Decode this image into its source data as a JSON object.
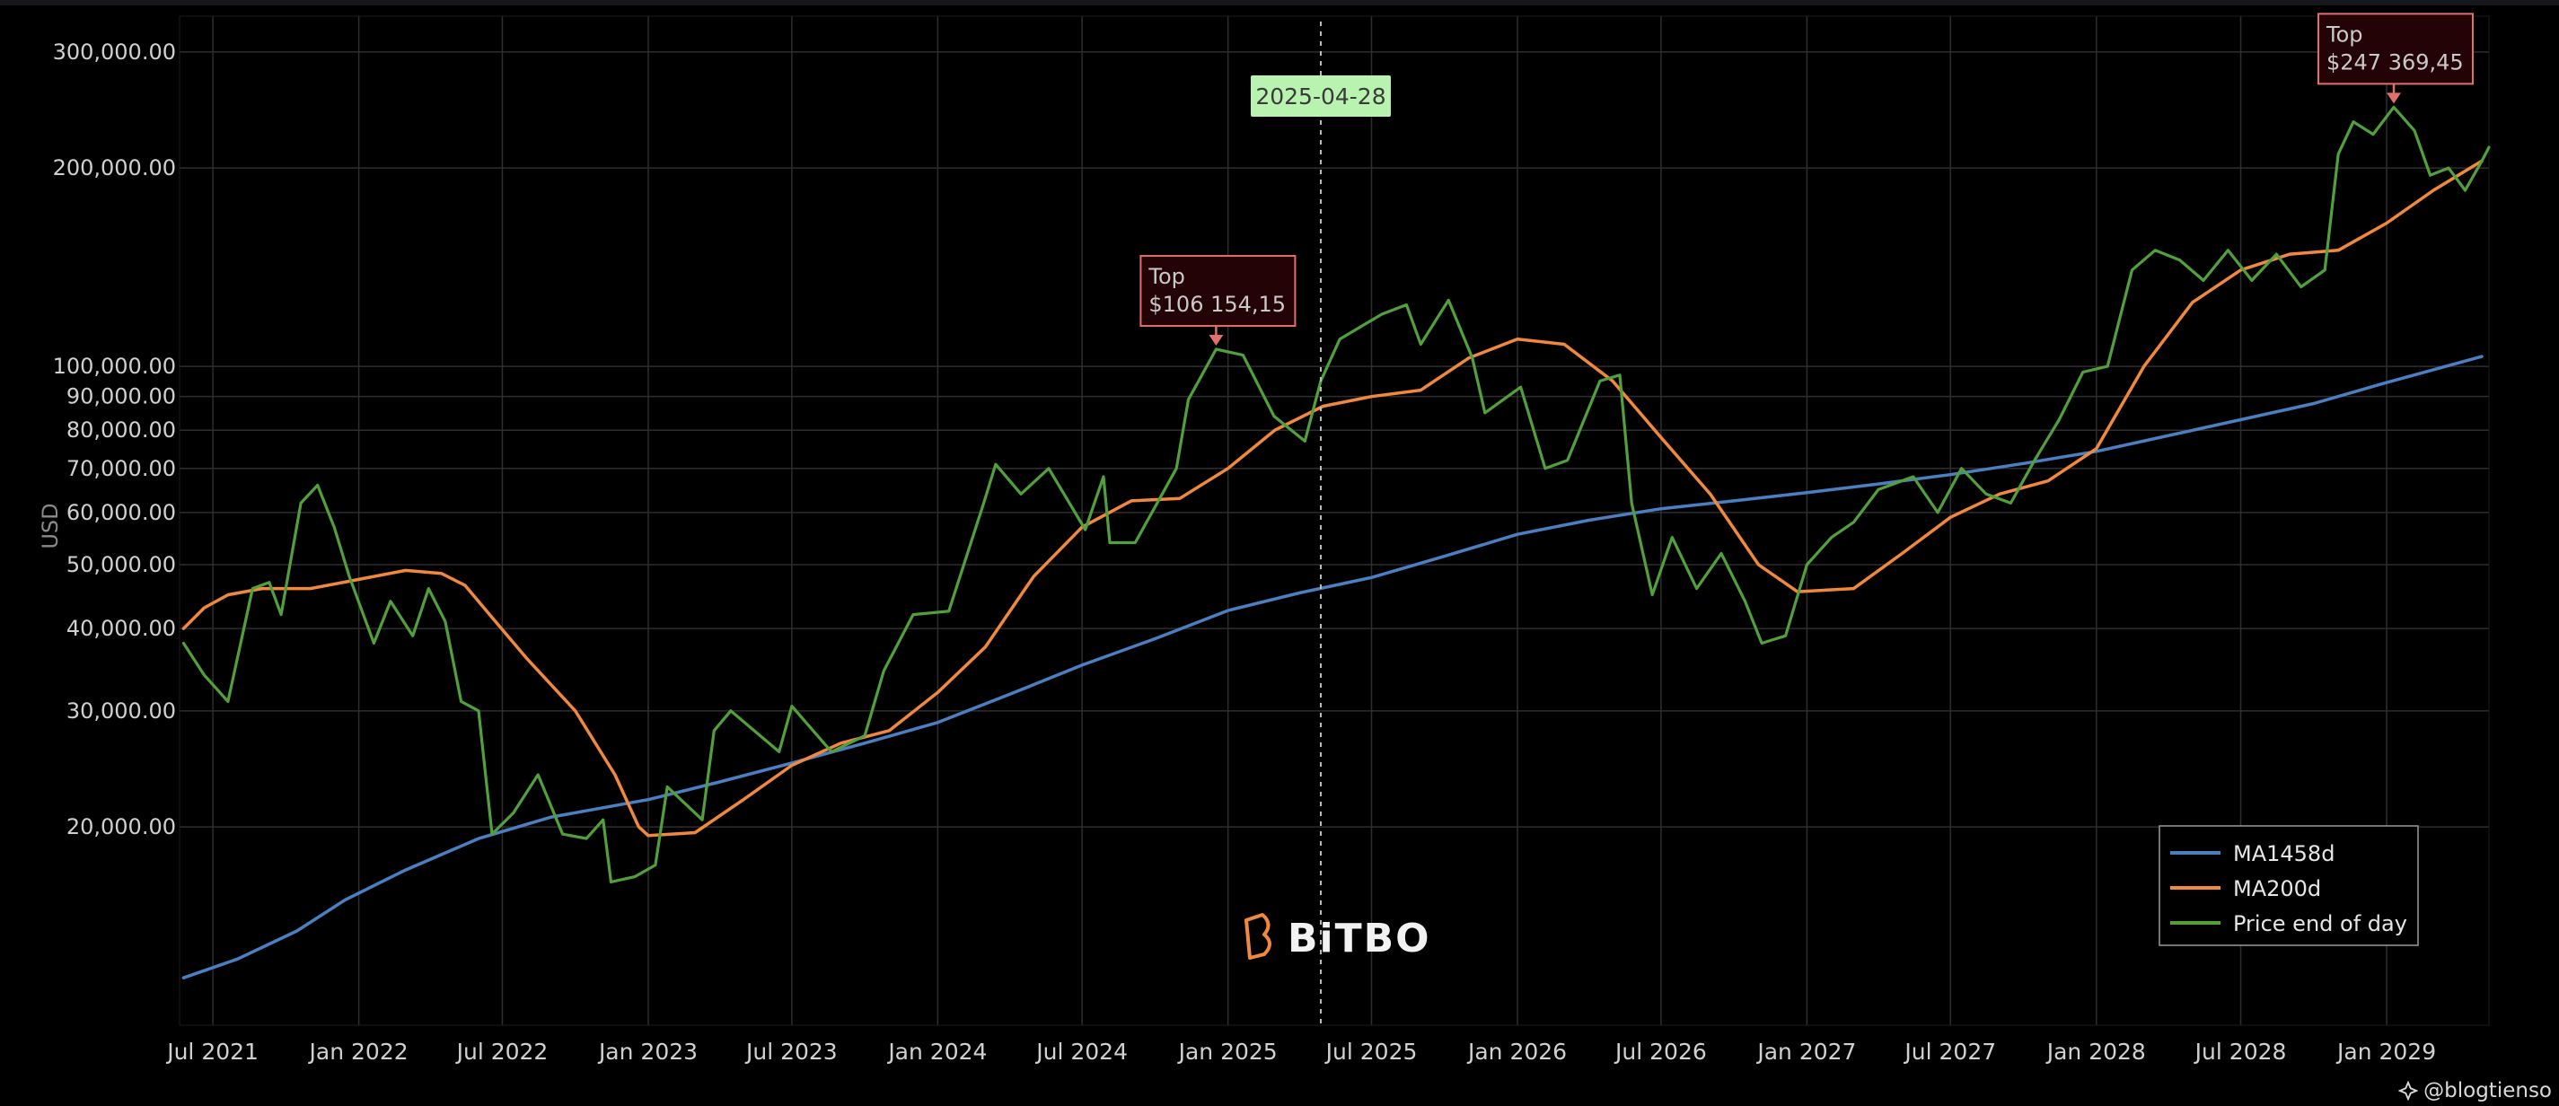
{
  "chart_data": {
    "type": "line",
    "title": "",
    "xlabel": "",
    "ylabel": "USD",
    "y_scale": "log",
    "ylim": [
      10000,
      340000
    ],
    "xlim": [
      "2021-05-20",
      "2029-05-10"
    ],
    "grid": true,
    "legend_position": "bottom-right",
    "y_ticks": [
      300000,
      200000,
      100000,
      90000,
      80000,
      70000,
      60000,
      50000,
      40000,
      30000,
      20000
    ],
    "y_tick_labels": [
      "300,000.00",
      "200,000.00",
      "100,000.00",
      "90,000.00",
      "80,000.00",
      "70,000.00",
      "60,000.00",
      "50,000.00",
      "40,000.00",
      "30,000.00",
      "20,000.00"
    ],
    "x_ticks": [
      "2021-07-01",
      "2022-01-01",
      "2022-07-01",
      "2023-01-01",
      "2023-07-01",
      "2024-01-01",
      "2024-07-01",
      "2025-01-01",
      "2025-07-01",
      "2026-01-01",
      "2026-07-01",
      "2027-01-01",
      "2027-07-01",
      "2028-01-01",
      "2028-07-01",
      "2029-01-01"
    ],
    "x_tick_labels": [
      "Jul 2021",
      "Jan 2022",
      "Jul 2022",
      "Jan 2023",
      "Jul 2023",
      "Jan 2024",
      "Jul 2024",
      "Jan 2025",
      "Jul 2025",
      "Jan 2026",
      "Jul 2026",
      "Jan 2027",
      "Jul 2027",
      "Jan 2028",
      "Jul 2028",
      "Jan 2029"
    ],
    "series": [
      {
        "name": "MA1458d",
        "color": "#4a7fc1",
        "points": [
          [
            "2021-05-25",
            11800
          ],
          [
            "2021-08-01",
            12600
          ],
          [
            "2021-10-15",
            13900
          ],
          [
            "2021-12-15",
            15500
          ],
          [
            "2022-03-01",
            17200
          ],
          [
            "2022-06-01",
            19200
          ],
          [
            "2022-09-01",
            20700
          ],
          [
            "2023-01-01",
            22000
          ],
          [
            "2023-04-01",
            23400
          ],
          [
            "2023-07-01",
            25000
          ],
          [
            "2023-10-01",
            26800
          ],
          [
            "2024-01-01",
            28800
          ],
          [
            "2024-04-01",
            31800
          ],
          [
            "2024-07-01",
            35200
          ],
          [
            "2024-10-01",
            38600
          ],
          [
            "2025-01-01",
            42600
          ],
          [
            "2025-04-01",
            45300
          ],
          [
            "2025-07-01",
            47800
          ],
          [
            "2025-10-01",
            51500
          ],
          [
            "2026-01-01",
            55600
          ],
          [
            "2026-04-01",
            58400
          ],
          [
            "2026-07-01",
            60800
          ],
          [
            "2026-10-01",
            62500
          ],
          [
            "2027-01-01",
            64300
          ],
          [
            "2027-04-01",
            66300
          ],
          [
            "2027-07-01",
            68500
          ],
          [
            "2027-10-01",
            71200
          ],
          [
            "2028-01-01",
            74300
          ],
          [
            "2028-04-01",
            78500
          ],
          [
            "2028-07-01",
            83000
          ],
          [
            "2028-10-01",
            87800
          ],
          [
            "2029-01-01",
            94500
          ],
          [
            "2029-05-01",
            103500
          ]
        ]
      },
      {
        "name": "MA200d",
        "color": "#f0883e",
        "points": [
          [
            "2021-05-25",
            40000
          ],
          [
            "2021-06-20",
            43000
          ],
          [
            "2021-07-20",
            45000
          ],
          [
            "2021-09-01",
            46000
          ],
          [
            "2021-11-01",
            46000
          ],
          [
            "2022-01-01",
            47500
          ],
          [
            "2022-03-01",
            49000
          ],
          [
            "2022-04-15",
            48500
          ],
          [
            "2022-05-15",
            46500
          ],
          [
            "2022-06-15",
            42000
          ],
          [
            "2022-08-01",
            36000
          ],
          [
            "2022-10-01",
            30000
          ],
          [
            "2022-11-20",
            24000
          ],
          [
            "2022-12-20",
            20000
          ],
          [
            "2023-01-01",
            19400
          ],
          [
            "2023-03-01",
            19600
          ],
          [
            "2023-05-01",
            22000
          ],
          [
            "2023-07-01",
            24800
          ],
          [
            "2023-09-01",
            26800
          ],
          [
            "2023-11-01",
            28000
          ],
          [
            "2024-01-01",
            32000
          ],
          [
            "2024-03-01",
            37500
          ],
          [
            "2024-05-01",
            48000
          ],
          [
            "2024-07-01",
            57000
          ],
          [
            "2024-09-01",
            62500
          ],
          [
            "2024-11-01",
            63000
          ],
          [
            "2025-01-01",
            70000
          ],
          [
            "2025-03-01",
            80000
          ],
          [
            "2025-05-01",
            87000
          ],
          [
            "2025-07-01",
            90000
          ],
          [
            "2025-09-01",
            92000
          ],
          [
            "2025-11-01",
            103000
          ],
          [
            "2026-01-01",
            110000
          ],
          [
            "2026-03-01",
            108000
          ],
          [
            "2026-05-01",
            95000
          ],
          [
            "2026-07-01",
            78000
          ],
          [
            "2026-09-01",
            64000
          ],
          [
            "2026-11-01",
            50000
          ],
          [
            "2026-12-20",
            45500
          ],
          [
            "2027-03-01",
            46000
          ],
          [
            "2027-05-01",
            52000
          ],
          [
            "2027-07-01",
            59000
          ],
          [
            "2027-09-01",
            64000
          ],
          [
            "2027-11-01",
            67000
          ],
          [
            "2028-01-01",
            75000
          ],
          [
            "2028-03-01",
            100000
          ],
          [
            "2028-05-01",
            125000
          ],
          [
            "2028-07-01",
            140000
          ],
          [
            "2028-09-01",
            148000
          ],
          [
            "2028-11-01",
            150000
          ],
          [
            "2029-01-01",
            165000
          ],
          [
            "2029-03-01",
            185000
          ],
          [
            "2029-05-01",
            205000
          ]
        ]
      },
      {
        "name": "Price end of day",
        "color": "#52a03c",
        "points": [
          [
            "2021-05-25",
            38000
          ],
          [
            "2021-06-20",
            34000
          ],
          [
            "2021-07-20",
            31000
          ],
          [
            "2021-08-20",
            46000
          ],
          [
            "2021-09-10",
            47000
          ],
          [
            "2021-09-25",
            42000
          ],
          [
            "2021-10-20",
            62000
          ],
          [
            "2021-11-10",
            66000
          ],
          [
            "2021-12-01",
            57000
          ],
          [
            "2021-12-20",
            48000
          ],
          [
            "2022-01-20",
            38000
          ],
          [
            "2022-02-10",
            44000
          ],
          [
            "2022-03-10",
            39000
          ],
          [
            "2022-03-30",
            46000
          ],
          [
            "2022-04-20",
            41000
          ],
          [
            "2022-05-10",
            31000
          ],
          [
            "2022-06-01",
            30000
          ],
          [
            "2022-06-18",
            19500
          ],
          [
            "2022-07-15",
            21000
          ],
          [
            "2022-08-15",
            24000
          ],
          [
            "2022-09-15",
            19500
          ],
          [
            "2022-10-15",
            19200
          ],
          [
            "2022-11-05",
            20500
          ],
          [
            "2022-11-15",
            16500
          ],
          [
            "2022-12-15",
            16800
          ],
          [
            "2023-01-10",
            17500
          ],
          [
            "2023-01-25",
            23000
          ],
          [
            "2023-03-10",
            20500
          ],
          [
            "2023-03-25",
            28000
          ],
          [
            "2023-04-15",
            30000
          ],
          [
            "2023-06-15",
            26000
          ],
          [
            "2023-07-01",
            30500
          ],
          [
            "2023-08-20",
            26000
          ],
          [
            "2023-10-01",
            27500
          ],
          [
            "2023-10-25",
            34500
          ],
          [
            "2023-12-01",
            42000
          ],
          [
            "2024-01-15",
            42500
          ],
          [
            "2024-02-28",
            62000
          ],
          [
            "2024-03-14",
            71000
          ],
          [
            "2024-04-15",
            64000
          ],
          [
            "2024-05-20",
            70000
          ],
          [
            "2024-07-05",
            56500
          ],
          [
            "2024-07-28",
            68000
          ],
          [
            "2024-08-05",
            54000
          ],
          [
            "2024-09-06",
            54000
          ],
          [
            "2024-10-28",
            70000
          ],
          [
            "2024-11-12",
            89000
          ],
          [
            "2024-12-17",
            106154
          ],
          [
            "2025-01-20",
            104000
          ],
          [
            "2025-02-28",
            84000
          ],
          [
            "2025-04-08",
            77000
          ],
          [
            "2025-04-28",
            95000
          ],
          [
            "2025-05-22",
            110000
          ],
          [
            "2025-07-14",
            120000
          ],
          [
            "2025-08-14",
            124000
          ],
          [
            "2025-09-01",
            108000
          ],
          [
            "2025-10-06",
            126000
          ],
          [
            "2025-11-05",
            103000
          ],
          [
            "2025-11-21",
            85000
          ],
          [
            "2026-01-05",
            93000
          ],
          [
            "2026-02-05",
            70000
          ],
          [
            "2026-03-05",
            72000
          ],
          [
            "2026-04-15",
            95000
          ],
          [
            "2026-05-10",
            97000
          ],
          [
            "2026-05-25",
            62000
          ],
          [
            "2026-06-20",
            45000
          ],
          [
            "2026-07-15",
            55000
          ],
          [
            "2026-08-15",
            46000
          ],
          [
            "2026-09-15",
            52000
          ],
          [
            "2026-10-15",
            44000
          ],
          [
            "2026-11-05",
            38000
          ],
          [
            "2026-12-05",
            39000
          ],
          [
            "2027-01-01",
            50000
          ],
          [
            "2027-02-01",
            55000
          ],
          [
            "2027-03-01",
            58000
          ],
          [
            "2027-04-01",
            65000
          ],
          [
            "2027-05-15",
            68000
          ],
          [
            "2027-06-15",
            60000
          ],
          [
            "2027-07-15",
            70000
          ],
          [
            "2027-08-15",
            64000
          ],
          [
            "2027-09-15",
            62000
          ],
          [
            "2027-10-15",
            72000
          ],
          [
            "2027-11-15",
            83000
          ],
          [
            "2027-12-15",
            98000
          ],
          [
            "2028-01-15",
            100000
          ],
          [
            "2028-02-15",
            140000
          ],
          [
            "2028-03-15",
            150000
          ],
          [
            "2028-04-15",
            145000
          ],
          [
            "2028-05-15",
            135000
          ],
          [
            "2028-06-15",
            150000
          ],
          [
            "2028-07-15",
            135000
          ],
          [
            "2028-08-15",
            148000
          ],
          [
            "2028-09-15",
            132000
          ],
          [
            "2028-10-15",
            140000
          ],
          [
            "2028-11-01",
            210000
          ],
          [
            "2028-11-20",
            235000
          ],
          [
            "2028-12-15",
            225000
          ],
          [
            "2029-01-10",
            247369
          ],
          [
            "2029-02-05",
            228000
          ],
          [
            "2029-02-25",
            195000
          ],
          [
            "2029-03-20",
            200000
          ],
          [
            "2029-04-10",
            185000
          ],
          [
            "2029-05-01",
            205000
          ],
          [
            "2029-05-10",
            215000
          ]
        ]
      }
    ],
    "vertical_marker": {
      "date": "2025-04-28",
      "label": "2025-04-28"
    },
    "annotations": [
      {
        "x": "2024-12-17",
        "y": 106154,
        "line1": "Top",
        "line2": "$106 154,15"
      },
      {
        "x": "2029-01-10",
        "y": 247369,
        "line1": "Top",
        "line2": "$247 369,45"
      }
    ]
  },
  "watermark": {
    "text": "BiTBO",
    "color": "#f0883e"
  },
  "credit": {
    "text": "@blogtienso"
  }
}
